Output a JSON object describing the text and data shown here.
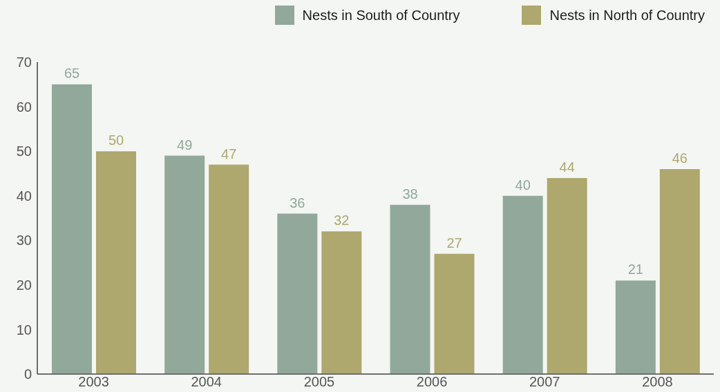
{
  "chart_data": {
    "type": "bar",
    "categories": [
      "2003",
      "2004",
      "2005",
      "2006",
      "2007",
      "2008"
    ],
    "series": [
      {
        "name": "Nests in South of Country",
        "color": "#91a89a",
        "values": [
          65,
          49,
          36,
          38,
          40,
          21
        ]
      },
      {
        "name": "Nests in North of Country",
        "color": "#aea86e",
        "values": [
          50,
          47,
          32,
          27,
          44,
          46
        ]
      }
    ],
    "ylim": [
      0,
      70
    ],
    "yticks": [
      0,
      10,
      20,
      30,
      40,
      50,
      60,
      70
    ],
    "grid": false,
    "legend": "top right",
    "data_labels": true
  }
}
